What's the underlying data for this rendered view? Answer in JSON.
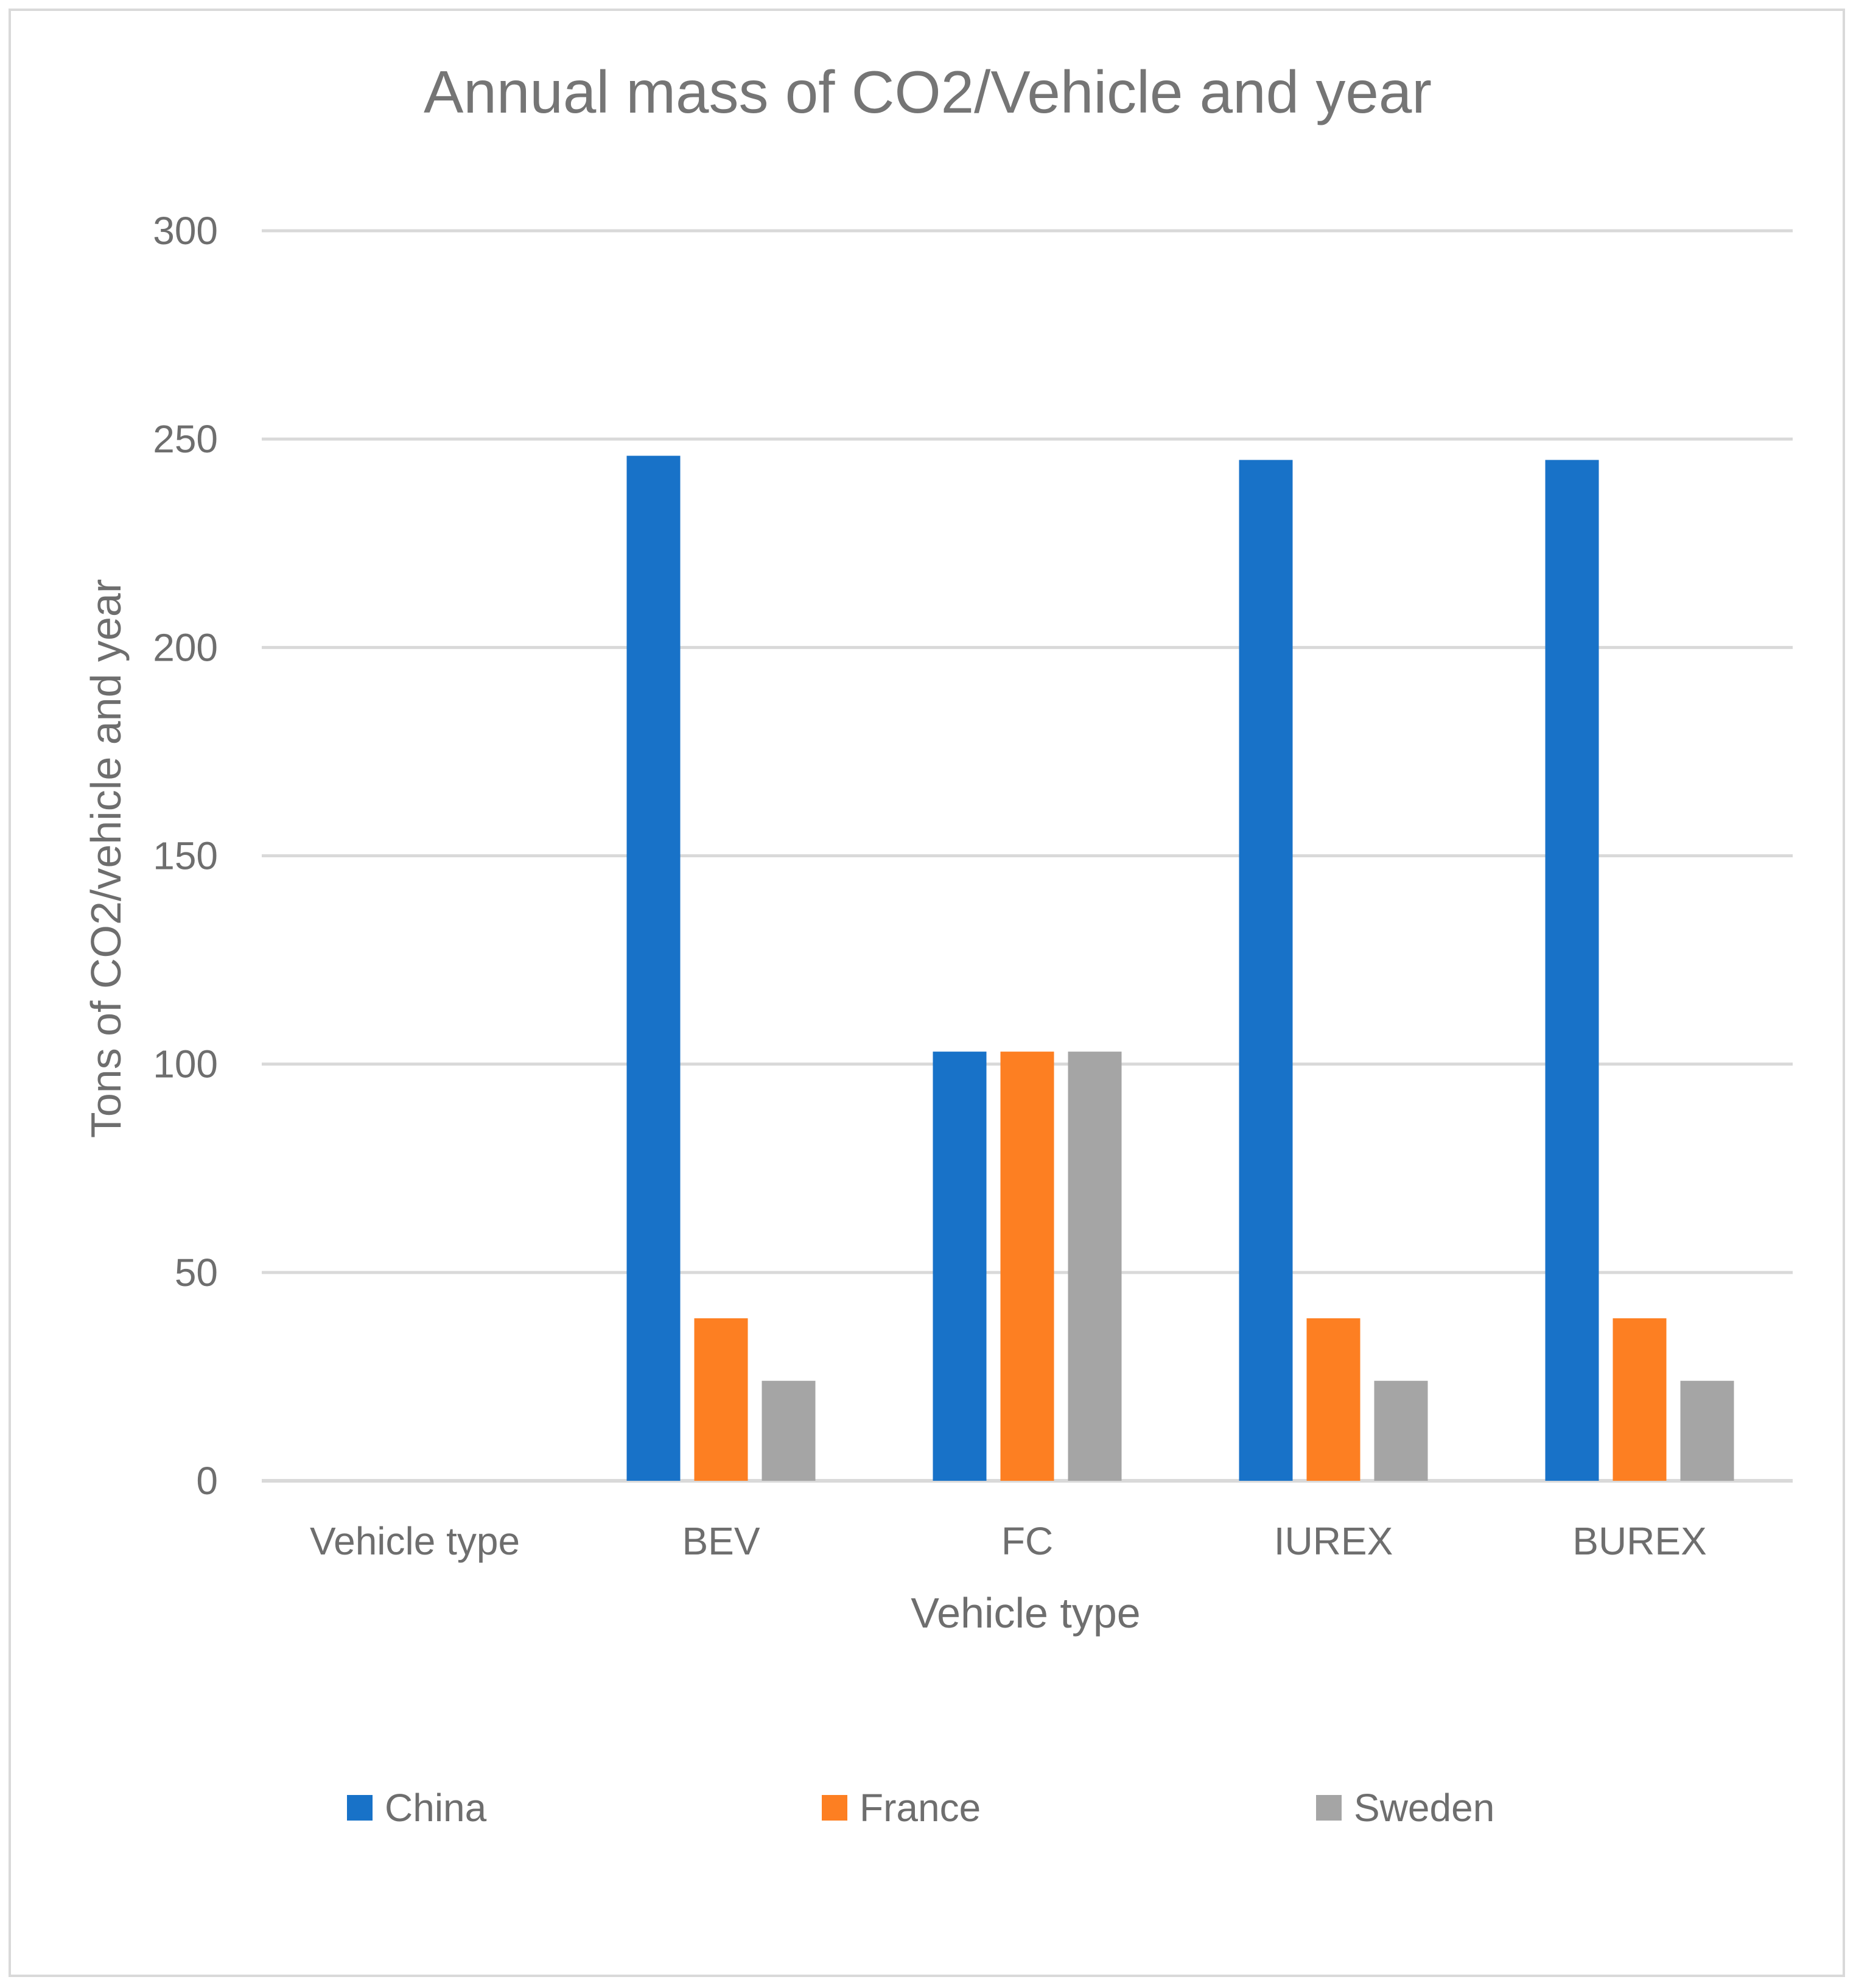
{
  "chart_data": {
    "type": "bar",
    "title": "Annual mass of CO2/Vehicle and year",
    "xlabel": "Vehicle type",
    "ylabel": "Tons of CO2/vehicle and year",
    "categories": [
      "Vehicle type",
      "BEV",
      "FC",
      "IUREX",
      "BUREX"
    ],
    "ylim": [
      0,
      300
    ],
    "yticks": [
      0,
      50,
      100,
      150,
      200,
      250,
      300
    ],
    "grid": true,
    "legend_position": "bottom",
    "series": [
      {
        "name": "China",
        "color": "#1872c8",
        "values": [
          null,
          246,
          103,
          245,
          245
        ]
      },
      {
        "name": "France",
        "color": "#fd7f22",
        "values": [
          null,
          39,
          103,
          39,
          39
        ]
      },
      {
        "name": "Sweden",
        "color": "#a5a5a5",
        "values": [
          null,
          24,
          103,
          24,
          24
        ]
      }
    ]
  }
}
